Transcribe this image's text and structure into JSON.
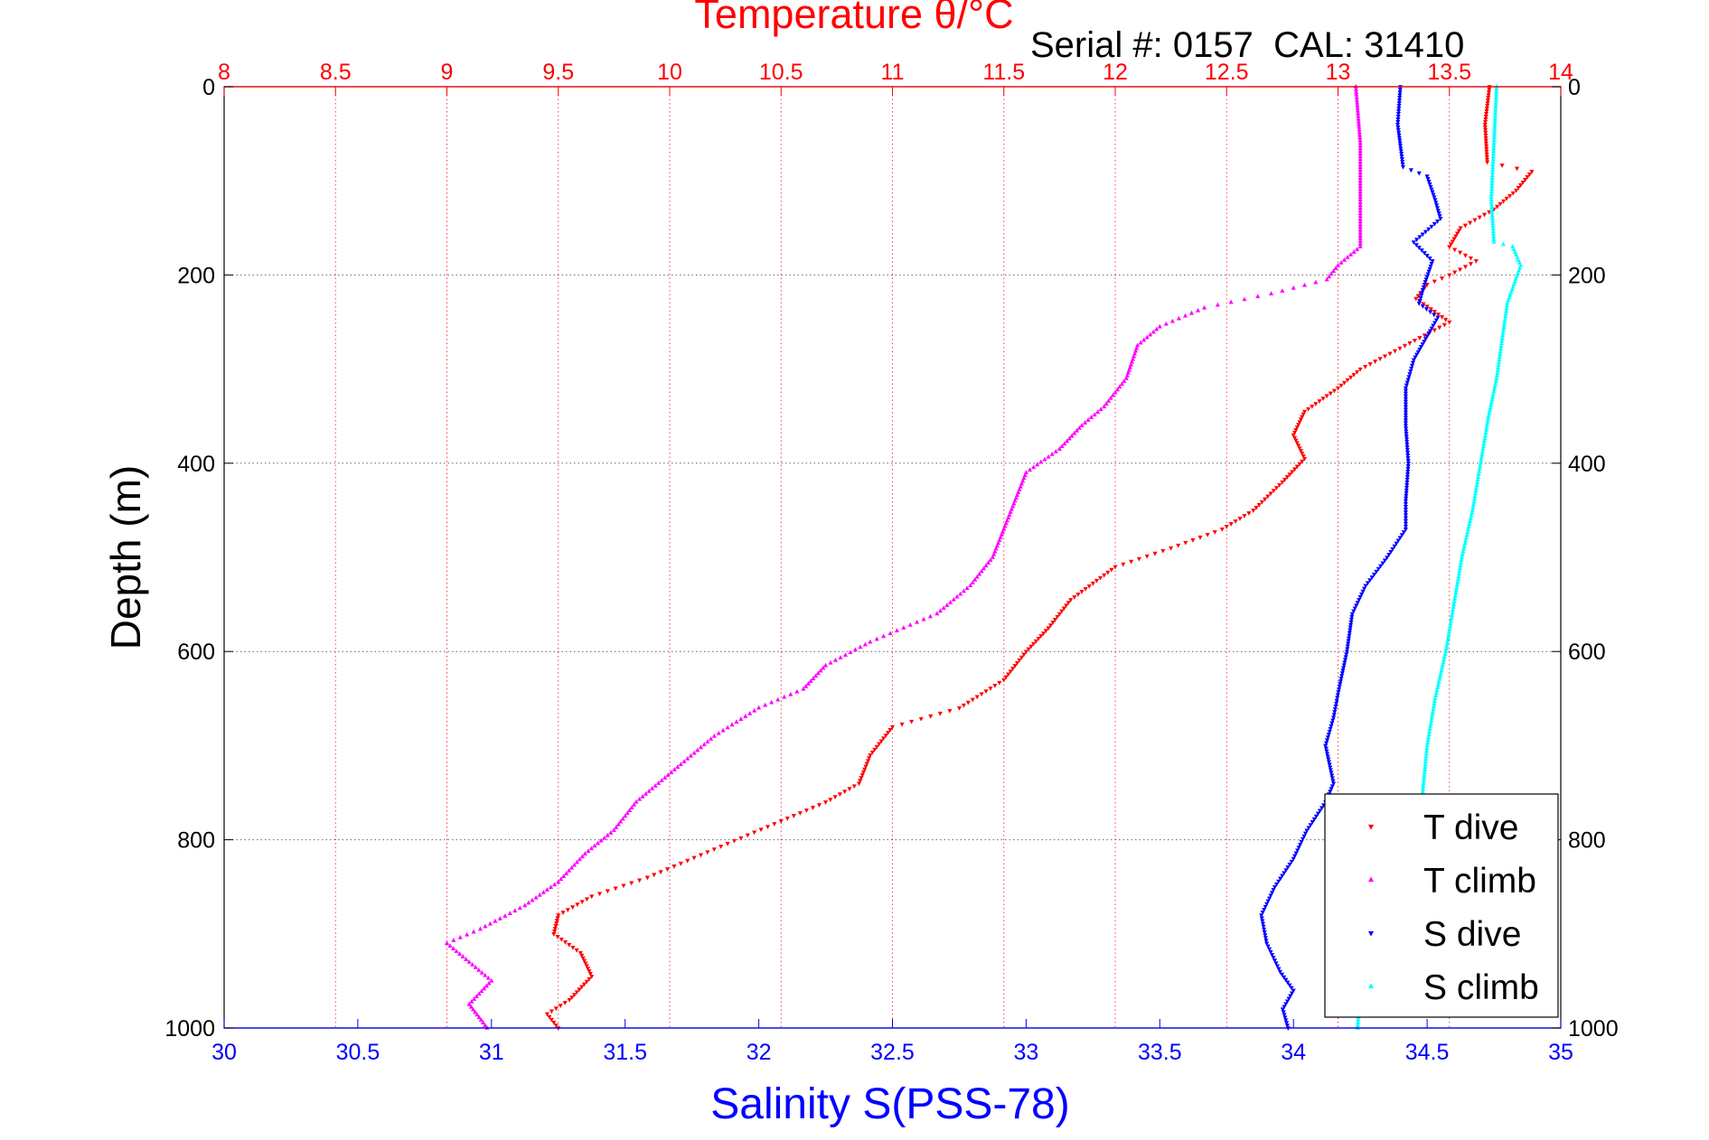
{
  "chart_data": {
    "type": "scatter",
    "title": "Temperature θ/°C",
    "annotation": "Serial #: 0157  CAL: 31410",
    "xlabel": "Salinity S(PSS-78)",
    "ylabel": "Depth (m)",
    "x_top_label": "Temperature θ/°C",
    "x_bottom_range": [
      30,
      35
    ],
    "x_top_range": [
      8,
      14
    ],
    "y_range": [
      0,
      1000
    ],
    "y_reversed": true,
    "grid": true,
    "legend_position": "bottom-right",
    "x_bottom_ticks": [
      "30",
      "30.5",
      "31",
      "31.5",
      "32",
      "32.5",
      "33",
      "33.5",
      "34",
      "34.5",
      "35"
    ],
    "x_top_ticks": [
      "8",
      "8.5",
      "9",
      "9.5",
      "10",
      "10.5",
      "11",
      "11.5",
      "12",
      "12.5",
      "13",
      "13.5",
      "14"
    ],
    "y_ticks": [
      "0",
      "200",
      "400",
      "600",
      "800",
      "1000"
    ],
    "colors": {
      "temperature_axis": "#ff0000",
      "salinity_axis": "#0000ff",
      "axes": "#000000"
    },
    "series": [
      {
        "name": "T dive",
        "axis": "temperature",
        "marker": "triangle-down",
        "color": "#ff0000",
        "points": [
          [
            13.68,
            0
          ],
          [
            13.66,
            40
          ],
          [
            13.67,
            80
          ],
          [
            13.87,
            90
          ],
          [
            13.8,
            110
          ],
          [
            13.7,
            130
          ],
          [
            13.55,
            150
          ],
          [
            13.5,
            170
          ],
          [
            13.62,
            185
          ],
          [
            13.5,
            200
          ],
          [
            13.4,
            210
          ],
          [
            13.35,
            225
          ],
          [
            13.5,
            250
          ],
          [
            13.3,
            275
          ],
          [
            13.1,
            300
          ],
          [
            13.0,
            320
          ],
          [
            12.85,
            345
          ],
          [
            12.8,
            370
          ],
          [
            12.85,
            395
          ],
          [
            12.75,
            420
          ],
          [
            12.62,
            450
          ],
          [
            12.48,
            470
          ],
          [
            12.25,
            490
          ],
          [
            12.0,
            510
          ],
          [
            11.8,
            545
          ],
          [
            11.7,
            575
          ],
          [
            11.6,
            600
          ],
          [
            11.5,
            630
          ],
          [
            11.3,
            660
          ],
          [
            11.0,
            680
          ],
          [
            10.9,
            710
          ],
          [
            10.85,
            740
          ],
          [
            10.7,
            760
          ],
          [
            10.5,
            780
          ],
          [
            10.2,
            810
          ],
          [
            9.9,
            840
          ],
          [
            9.65,
            860
          ],
          [
            9.5,
            880
          ],
          [
            9.48,
            900
          ],
          [
            9.6,
            920
          ],
          [
            9.65,
            945
          ],
          [
            9.55,
            970
          ],
          [
            9.45,
            985
          ],
          [
            9.5,
            1000
          ]
        ]
      },
      {
        "name": "T climb",
        "axis": "temperature",
        "marker": "triangle-up",
        "color": "#ff00ff",
        "points": [
          [
            13.08,
            0
          ],
          [
            13.1,
            60
          ],
          [
            13.1,
            120
          ],
          [
            13.1,
            170
          ],
          [
            13.0,
            190
          ],
          [
            12.95,
            205
          ],
          [
            12.7,
            220
          ],
          [
            12.4,
            235
          ],
          [
            12.2,
            255
          ],
          [
            12.1,
            275
          ],
          [
            12.05,
            310
          ],
          [
            11.95,
            340
          ],
          [
            11.85,
            360
          ],
          [
            11.75,
            385
          ],
          [
            11.6,
            410
          ],
          [
            11.55,
            440
          ],
          [
            11.5,
            470
          ],
          [
            11.45,
            500
          ],
          [
            11.35,
            530
          ],
          [
            11.2,
            560
          ],
          [
            10.9,
            590
          ],
          [
            10.7,
            615
          ],
          [
            10.6,
            640
          ],
          [
            10.4,
            660
          ],
          [
            10.2,
            690
          ],
          [
            10.05,
            720
          ],
          [
            9.85,
            760
          ],
          [
            9.75,
            790
          ],
          [
            9.62,
            815
          ],
          [
            9.5,
            845
          ],
          [
            9.35,
            870
          ],
          [
            9.15,
            895
          ],
          [
            9.0,
            910
          ],
          [
            9.1,
            930
          ],
          [
            9.2,
            950
          ],
          [
            9.1,
            975
          ],
          [
            9.18,
            1000
          ]
        ]
      },
      {
        "name": "S dive",
        "axis": "salinity",
        "marker": "triangle-down",
        "color": "#0000ff",
        "points": [
          [
            34.4,
            0
          ],
          [
            34.39,
            40
          ],
          [
            34.41,
            85
          ],
          [
            34.5,
            95
          ],
          [
            34.53,
            120
          ],
          [
            34.55,
            140
          ],
          [
            34.45,
            165
          ],
          [
            34.52,
            185
          ],
          [
            34.49,
            210
          ],
          [
            34.47,
            230
          ],
          [
            34.54,
            245
          ],
          [
            34.5,
            265
          ],
          [
            34.45,
            290
          ],
          [
            34.42,
            320
          ],
          [
            34.42,
            360
          ],
          [
            34.43,
            400
          ],
          [
            34.42,
            440
          ],
          [
            34.42,
            470
          ],
          [
            34.35,
            500
          ],
          [
            34.27,
            530
          ],
          [
            34.22,
            560
          ],
          [
            34.2,
            600
          ],
          [
            34.17,
            640
          ],
          [
            34.15,
            670
          ],
          [
            34.12,
            700
          ],
          [
            34.15,
            740
          ],
          [
            34.12,
            760
          ],
          [
            34.05,
            790
          ],
          [
            34.0,
            820
          ],
          [
            33.93,
            850
          ],
          [
            33.88,
            880
          ],
          [
            33.9,
            910
          ],
          [
            33.95,
            940
          ],
          [
            34.0,
            960
          ],
          [
            33.96,
            980
          ],
          [
            33.98,
            1000
          ]
        ]
      },
      {
        "name": "S climb",
        "axis": "salinity",
        "marker": "triangle-up",
        "color": "#00ffff",
        "points": [
          [
            34.76,
            0
          ],
          [
            34.75,
            60
          ],
          [
            34.74,
            120
          ],
          [
            34.75,
            165
          ],
          [
            34.82,
            170
          ],
          [
            34.85,
            190
          ],
          [
            34.8,
            230
          ],
          [
            34.78,
            270
          ],
          [
            34.76,
            310
          ],
          [
            34.73,
            350
          ],
          [
            34.7,
            400
          ],
          [
            34.67,
            450
          ],
          [
            34.63,
            500
          ],
          [
            34.6,
            550
          ],
          [
            34.57,
            600
          ],
          [
            34.53,
            650
          ],
          [
            34.5,
            700
          ],
          [
            34.48,
            760
          ],
          [
            34.45,
            810
          ],
          [
            34.38,
            860
          ],
          [
            34.3,
            910
          ],
          [
            34.25,
            960
          ],
          [
            34.24,
            1000
          ]
        ]
      }
    ]
  }
}
